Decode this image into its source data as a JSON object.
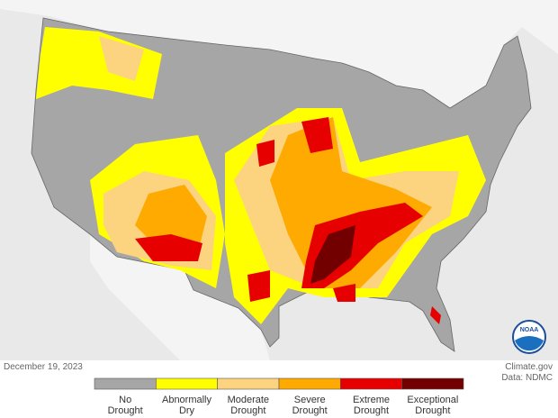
{
  "date": "December 19, 2023",
  "source": "Climate.gov",
  "data_credit": "Data: NDMC",
  "logo": "NOAA",
  "legend": [
    {
      "lines": [
        "No",
        "Drought"
      ],
      "color": "#a6a6a6"
    },
    {
      "lines": [
        "Abnormally",
        "Dry"
      ],
      "color": "#ffff00"
    },
    {
      "lines": [
        "Moderate",
        "Drought"
      ],
      "color": "#fcd37f"
    },
    {
      "lines": [
        "Severe",
        "Drought"
      ],
      "color": "#ffaa00"
    },
    {
      "lines": [
        "Extreme",
        "Drought"
      ],
      "color": "#e60000"
    },
    {
      "lines": [
        "Exceptional",
        "Drought"
      ],
      "color": "#730000"
    }
  ]
}
